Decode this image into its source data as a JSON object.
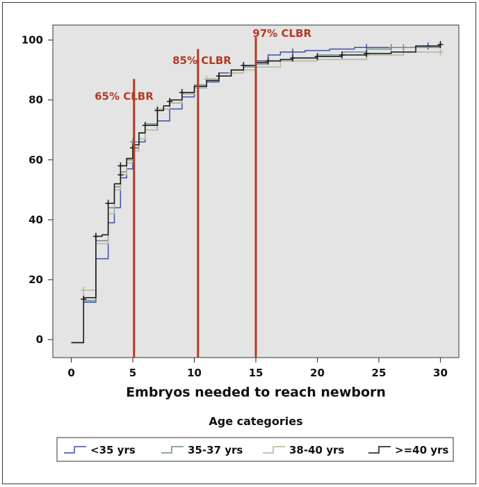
{
  "chart_data": {
    "type": "line",
    "xlabel": "Embryos needed to reach newborn",
    "ylabel": "",
    "xlim": [
      -1.5,
      31.5
    ],
    "ylim": [
      -6,
      105
    ],
    "x_ticks": [
      "0",
      "5",
      "10",
      "15",
      "20",
      "25",
      "30"
    ],
    "y_ticks": [
      "0",
      "20",
      "40",
      "60",
      "80",
      "100"
    ],
    "legend_title": "Age categories",
    "legend_position": "bottom",
    "background": "#e4e4e4",
    "series": [
      {
        "name": "<35 yrs",
        "color": "#3a4fa6",
        "points": [
          [
            0,
            -1
          ],
          [
            1,
            -1
          ],
          [
            1,
            12.5
          ],
          [
            2,
            12.5
          ],
          [
            2,
            27
          ],
          [
            3,
            27
          ],
          [
            3,
            39
          ],
          [
            3.5,
            39
          ],
          [
            3.5,
            44
          ],
          [
            4,
            44
          ],
          [
            4,
            54
          ],
          [
            4.5,
            54
          ],
          [
            4.5,
            57
          ],
          [
            5,
            57
          ],
          [
            5,
            64
          ],
          [
            5.5,
            64
          ],
          [
            5.5,
            66
          ],
          [
            6,
            66
          ],
          [
            6,
            70
          ],
          [
            7,
            70
          ],
          [
            7,
            73
          ],
          [
            8,
            73
          ],
          [
            8,
            77
          ],
          [
            9,
            77
          ],
          [
            9,
            81
          ],
          [
            10,
            81
          ],
          [
            10,
            84
          ],
          [
            11,
            84
          ],
          [
            11,
            86
          ],
          [
            12,
            86
          ],
          [
            12,
            89
          ],
          [
            13,
            89
          ],
          [
            13,
            90
          ],
          [
            14,
            90
          ],
          [
            14,
            91
          ],
          [
            15,
            91
          ],
          [
            15,
            93
          ],
          [
            16,
            93
          ],
          [
            16,
            95
          ],
          [
            17,
            95
          ],
          [
            17,
            96
          ],
          [
            19,
            96
          ],
          [
            19,
            96.5
          ],
          [
            21,
            96.5
          ],
          [
            21,
            97
          ],
          [
            23,
            97
          ],
          [
            23,
            97.5
          ],
          [
            28,
            97.5
          ],
          [
            28,
            98
          ],
          [
            30,
            98
          ]
        ]
      },
      {
        "name": "35-37 yrs",
        "color": "#6a8a8e",
        "points": [
          [
            0,
            -1
          ],
          [
            1,
            -1
          ],
          [
            1,
            13
          ],
          [
            2,
            13
          ],
          [
            2,
            33
          ],
          [
            3,
            33
          ],
          [
            3,
            44
          ],
          [
            3.5,
            44
          ],
          [
            3.5,
            51
          ],
          [
            4,
            51
          ],
          [
            4,
            56
          ],
          [
            4.5,
            56
          ],
          [
            4.5,
            60
          ],
          [
            5,
            60
          ],
          [
            5,
            66
          ],
          [
            5.5,
            66
          ],
          [
            5.5,
            69
          ],
          [
            6,
            69
          ],
          [
            6,
            72
          ],
          [
            7,
            72
          ],
          [
            7,
            77
          ],
          [
            8,
            77
          ],
          [
            8,
            79
          ],
          [
            9,
            79
          ],
          [
            9,
            82
          ],
          [
            10,
            82
          ],
          [
            10,
            85
          ],
          [
            11,
            85
          ],
          [
            11,
            87
          ],
          [
            12,
            87
          ],
          [
            12,
            88
          ],
          [
            13,
            88
          ],
          [
            13,
            90
          ],
          [
            14,
            90
          ],
          [
            14,
            91
          ],
          [
            15,
            91
          ],
          [
            15,
            92
          ],
          [
            16,
            92
          ],
          [
            16,
            93
          ],
          [
            18,
            93
          ],
          [
            18,
            94
          ],
          [
            20,
            94
          ],
          [
            20,
            95
          ],
          [
            22,
            95
          ],
          [
            22,
            96
          ],
          [
            24,
            96
          ],
          [
            24,
            97
          ],
          [
            26,
            97
          ],
          [
            26,
            97.5
          ],
          [
            30,
            97.5
          ]
        ]
      },
      {
        "name": "38-40 yrs",
        "color": "#b4b49a",
        "points": [
          [
            0,
            -1
          ],
          [
            1,
            -1
          ],
          [
            1,
            16.5
          ],
          [
            2,
            16.5
          ],
          [
            2,
            32
          ],
          [
            3,
            32
          ],
          [
            3,
            42
          ],
          [
            3.5,
            42
          ],
          [
            3.5,
            50
          ],
          [
            4,
            50
          ],
          [
            4,
            55
          ],
          [
            4.5,
            55
          ],
          [
            4.5,
            59
          ],
          [
            5,
            59
          ],
          [
            5,
            63
          ],
          [
            5.5,
            63
          ],
          [
            5.5,
            67
          ],
          [
            6,
            67
          ],
          [
            6,
            70
          ],
          [
            7,
            70
          ],
          [
            7,
            77
          ],
          [
            8,
            77
          ],
          [
            8,
            79
          ],
          [
            9,
            79
          ],
          [
            9,
            82
          ],
          [
            10,
            82
          ],
          [
            10,
            84
          ],
          [
            11,
            84
          ],
          [
            11,
            87
          ],
          [
            12,
            87
          ],
          [
            12,
            88
          ],
          [
            13,
            88
          ],
          [
            13,
            89
          ],
          [
            14,
            89
          ],
          [
            14,
            90
          ],
          [
            15,
            90
          ],
          [
            15,
            91
          ],
          [
            17,
            91
          ],
          [
            17,
            93
          ],
          [
            20,
            93
          ],
          [
            20,
            93.5
          ],
          [
            24,
            93.5
          ],
          [
            24,
            95
          ],
          [
            27,
            95
          ],
          [
            27,
            96
          ],
          [
            30,
            96
          ]
        ]
      },
      {
        "name": ">=40 yrs",
        "color": "#111111",
        "points": [
          [
            0,
            -1
          ],
          [
            1,
            -1
          ],
          [
            1,
            14
          ],
          [
            2,
            14
          ],
          [
            2,
            34.5
          ],
          [
            2.5,
            34.5
          ],
          [
            2.5,
            35
          ],
          [
            3,
            35
          ],
          [
            3,
            45.5
          ],
          [
            3.5,
            45.5
          ],
          [
            3.5,
            52
          ],
          [
            4,
            52
          ],
          [
            4,
            58
          ],
          [
            4.5,
            58
          ],
          [
            4.5,
            60.5
          ],
          [
            5,
            60.5
          ],
          [
            5,
            65
          ],
          [
            5.5,
            65
          ],
          [
            5.5,
            69
          ],
          [
            6,
            69
          ],
          [
            6,
            71.5
          ],
          [
            7,
            71.5
          ],
          [
            7,
            76.5
          ],
          [
            7.5,
            76.5
          ],
          [
            7.5,
            78
          ],
          [
            8,
            78
          ],
          [
            8,
            80
          ],
          [
            9,
            80
          ],
          [
            9,
            82.5
          ],
          [
            10,
            82.5
          ],
          [
            10,
            84.5
          ],
          [
            11,
            84.5
          ],
          [
            11,
            86.5
          ],
          [
            12,
            86.5
          ],
          [
            12,
            88
          ],
          [
            13,
            88
          ],
          [
            13,
            90
          ],
          [
            14,
            90
          ],
          [
            14,
            91.5
          ],
          [
            15,
            91.5
          ],
          [
            15,
            92.5
          ],
          [
            16,
            92.5
          ],
          [
            16,
            93
          ],
          [
            17,
            93
          ],
          [
            17,
            93.5
          ],
          [
            18,
            93.5
          ],
          [
            18,
            94
          ],
          [
            20,
            94
          ],
          [
            20,
            94.5
          ],
          [
            22,
            94.5
          ],
          [
            22,
            95
          ],
          [
            24,
            95
          ],
          [
            24,
            95.5
          ],
          [
            26,
            95.5
          ],
          [
            26,
            96
          ],
          [
            28,
            96
          ],
          [
            28,
            98
          ],
          [
            30,
            98
          ]
        ]
      }
    ],
    "censor_marks": {
      "<35 yrs": [
        [
          18,
          96
        ],
        [
          24,
          97.5
        ],
        [
          29,
          98
        ]
      ],
      "35-37 yrs": [
        [
          5,
          66
        ],
        [
          7,
          77
        ],
        [
          26,
          97.5
        ],
        [
          27,
          97.5
        ]
      ],
      "38-40 yrs": [
        [
          1,
          16.5
        ],
        [
          5,
          64
        ],
        [
          7,
          77
        ],
        [
          11,
          87
        ],
        [
          13,
          89
        ],
        [
          24,
          95
        ],
        [
          30,
          96
        ]
      ],
      ">=40 yrs": [
        [
          1,
          13.5
        ],
        [
          2,
          34.5
        ],
        [
          3,
          45.5
        ],
        [
          4,
          58
        ],
        [
          4,
          55
        ],
        [
          5,
          64
        ],
        [
          6,
          71.5
        ],
        [
          7,
          76.5
        ],
        [
          8,
          79.5
        ],
        [
          9,
          82.5
        ],
        [
          12,
          88
        ],
        [
          14,
          91.5
        ],
        [
          16,
          93
        ],
        [
          18,
          94
        ],
        [
          20,
          94.5
        ],
        [
          22,
          95
        ],
        [
          24,
          95.5
        ],
        [
          30,
          98.5
        ]
      ]
    },
    "reference_lines": [
      {
        "x": 5.1,
        "label": "65% CLBR",
        "color": "#b33a22"
      },
      {
        "x": 10.3,
        "label": "85% CLBR",
        "color": "#b33a22"
      },
      {
        "x": 15,
        "label": "97% CLBR",
        "color": "#b33a22"
      }
    ]
  }
}
